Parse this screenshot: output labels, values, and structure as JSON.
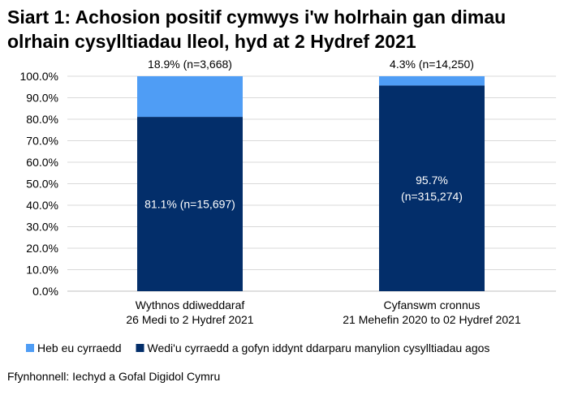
{
  "title": "Siart 1: Achosion positif cymwys i'w holrhain gan dimau olrhain cysylltiadau lleol, hyd at 2 Hydref 2021",
  "source": "Ffynhonnell: Iechyd a Gofal Digidol Cymru",
  "colors": {
    "light": "#4f9df5",
    "dark": "#032e6a",
    "grid": "#d9d9d9",
    "axis": "#bfbfbf"
  },
  "chart_data": {
    "type": "bar",
    "stacked": true,
    "percent": true,
    "ylim": [
      0,
      100
    ],
    "yticks": [
      "0.0%",
      "10.0%",
      "20.0%",
      "30.0%",
      "40.0%",
      "50.0%",
      "60.0%",
      "70.0%",
      "80.0%",
      "90.0%",
      "100.0%"
    ],
    "categories": [
      [
        "Wythnos ddiweddaraf",
        "26 Medi to 2 Hydref 2021"
      ],
      [
        "Cyfanswm cronnus",
        "21 Mehefin 2020 to 02 Hydref 2021"
      ]
    ],
    "series": [
      {
        "name": "Wedi'u cyrraedd a gofyn iddynt ddarparu manylion cysylltiadau agos",
        "color": "#032e6a",
        "values": [
          81.1,
          95.7
        ],
        "labels": [
          [
            "81.1% (n=15,697)"
          ],
          [
            "95.7%",
            "(n=315,274)"
          ]
        ]
      },
      {
        "name": "Heb eu cyrraedd",
        "color": "#4f9df5",
        "values": [
          18.9,
          4.3
        ],
        "labels": [
          [
            "18.9% (n=3,668)"
          ],
          [
            "4.3% (n=14,250)"
          ]
        ]
      }
    ],
    "legend": {
      "position": "bottom",
      "order": [
        1,
        0
      ]
    },
    "grid": true
  }
}
